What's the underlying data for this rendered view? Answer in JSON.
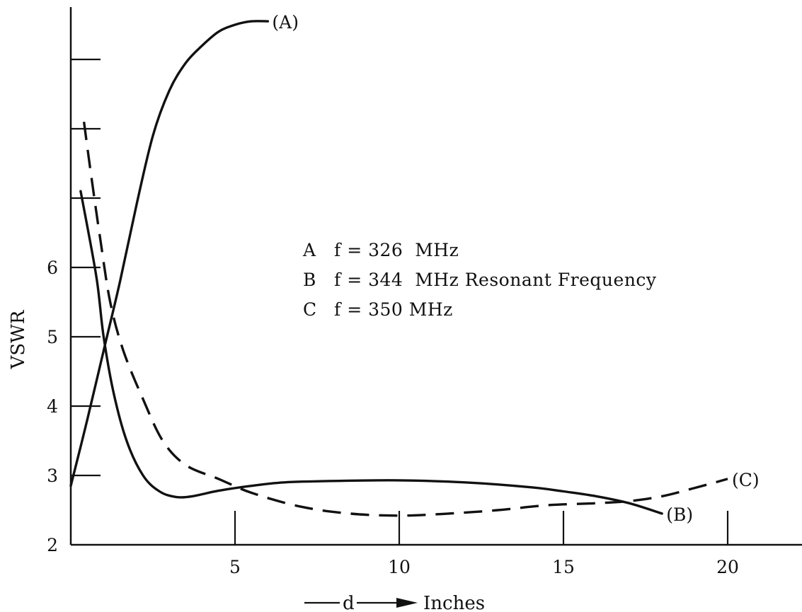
{
  "chart_data": {
    "type": "line",
    "title": "",
    "xlabel": "Inches",
    "xlabel_prefix": "d",
    "ylabel": "VSWR",
    "xlim": [
      0,
      22.3
    ],
    "ylim": [
      2,
      9.9
    ],
    "x_ticks": [
      5,
      10,
      15,
      20
    ],
    "x_tick_labels": [
      "5",
      "10",
      "15",
      "20"
    ],
    "y_ticks": [
      2,
      3,
      4,
      5,
      6,
      7,
      8,
      9
    ],
    "y_tick_labels": [
      "2",
      "3",
      "4",
      "5",
      "6",
      "",
      "",
      ""
    ],
    "grid": false,
    "legend": {
      "placement": "center",
      "entries": [
        {
          "key": "A",
          "text": "f = 326  MHz"
        },
        {
          "key": "B",
          "text": "f = 344  MHz Resonant Frequency"
        },
        {
          "key": "C",
          "text": "f = 350 MHz"
        }
      ]
    },
    "series": [
      {
        "label": "(A)",
        "style": "solid",
        "x": [
          0,
          0.5,
          1,
          1.5,
          2,
          2.5,
          3,
          3.5,
          4,
          4.5,
          5,
          5.5,
          6
        ],
        "y": [
          2.85,
          3.8,
          4.8,
          5.8,
          6.9,
          7.9,
          8.55,
          8.95,
          9.2,
          9.4,
          9.5,
          9.55,
          9.55
        ]
      },
      {
        "label": "(B)",
        "style": "solid",
        "x": [
          0.3,
          0.5,
          0.8,
          1,
          1.3,
          1.7,
          2.2,
          2.7,
          3.2,
          3.7,
          4.5,
          5.5,
          6.5,
          8,
          10,
          12,
          14,
          15,
          16,
          17,
          18
        ],
        "y": [
          7.1,
          6.6,
          5.8,
          5.0,
          4.2,
          3.5,
          3.0,
          2.77,
          2.69,
          2.7,
          2.78,
          2.85,
          2.9,
          2.92,
          2.93,
          2.9,
          2.83,
          2.77,
          2.7,
          2.6,
          2.45
        ]
      },
      {
        "label": "(C)",
        "style": "dashed",
        "x": [
          0.4,
          0.6,
          0.9,
          1.2,
          1.6,
          2.2,
          2.8,
          3.5,
          4.5,
          5.5,
          7,
          8.5,
          10,
          11.5,
          13,
          14.5,
          16,
          17,
          18,
          19,
          20
        ],
        "y": [
          8.1,
          7.4,
          6.4,
          5.5,
          4.8,
          4.1,
          3.5,
          3.15,
          2.95,
          2.75,
          2.55,
          2.45,
          2.42,
          2.45,
          2.5,
          2.57,
          2.6,
          2.63,
          2.7,
          2.82,
          2.95
        ]
      }
    ]
  }
}
